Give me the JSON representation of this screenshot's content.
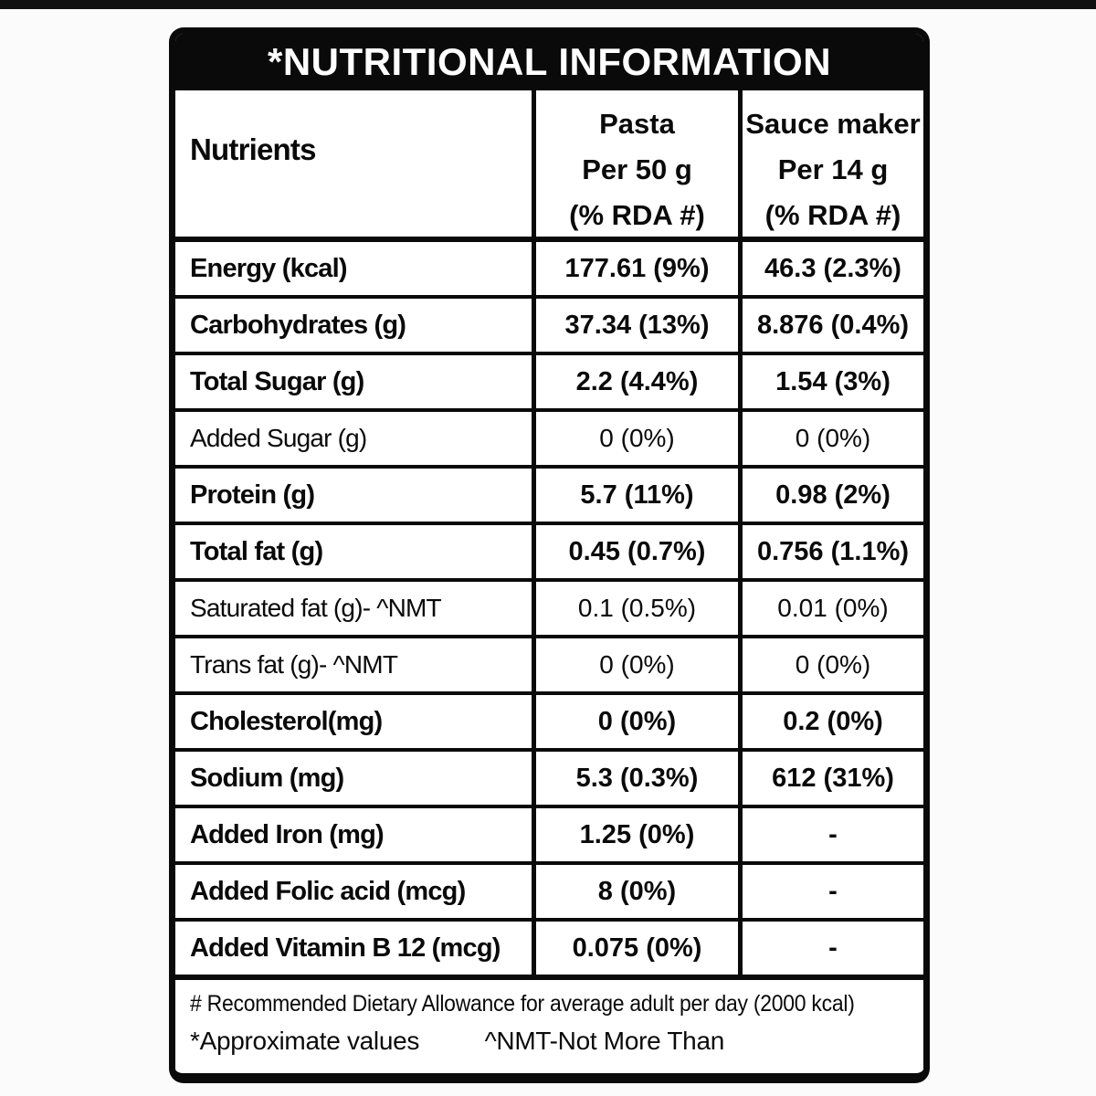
{
  "table": {
    "title": "*NUTRITIONAL INFORMATION",
    "columns": {
      "nutrients": "Nutrients",
      "pasta": [
        "Pasta",
        "Per 50 g",
        "(% RDA #)"
      ],
      "sauce": [
        "Sauce maker",
        "Per 14 g",
        "(% RDA #)"
      ]
    },
    "rows": [
      {
        "nutrient": "Energy (kcal)",
        "pasta": "177.61 (9%)",
        "sauce": "46.3 (2.3%)"
      },
      {
        "nutrient": "Carbohydrates (g)",
        "pasta": "37.34 (13%)",
        "sauce": "8.876 (0.4%)"
      },
      {
        "nutrient": "Total Sugar (g)",
        "pasta": "2.2 (4.4%)",
        "sauce": "1.54 (3%)"
      },
      {
        "nutrient": "Added Sugar (g)",
        "pasta": "0 (0%)",
        "sauce": "0 (0%)"
      },
      {
        "nutrient": "Protein (g)",
        "pasta": "5.7 (11%)",
        "sauce": "0.98 (2%)"
      },
      {
        "nutrient": "Total fat (g)",
        "pasta": "0.45 (0.7%)",
        "sauce": "0.756 (1.1%)"
      },
      {
        "nutrient": "Saturated fat (g)- ^NMT",
        "pasta": "0.1 (0.5%)",
        "sauce": "0.01 (0%)"
      },
      {
        "nutrient": "Trans fat (g)- ^NMT",
        "pasta": "0 (0%)",
        "sauce": "0 (0%)"
      },
      {
        "nutrient": "Cholesterol(mg)",
        "pasta": "0 (0%)",
        "sauce": "0.2 (0%)"
      },
      {
        "nutrient": "Sodium (mg)",
        "pasta": "5.3 (0.3%)",
        "sauce": "612 (31%)"
      },
      {
        "nutrient": "Added Iron (mg)",
        "pasta": "1.25 (0%)",
        "sauce": "-"
      },
      {
        "nutrient": "Added Folic acid (mcg)",
        "pasta": "8 (0%)",
        "sauce": "-"
      },
      {
        "nutrient": "Added Vitamin B 12 (mcg)",
        "pasta": "0.075 (0%)",
        "sauce": "-"
      }
    ],
    "footnotes": {
      "rda": "# Recommended Dietary Allowance for average adult per day (2000 kcal)",
      "approximate": "*Approximate values",
      "nmt": "^NMT-Not More Than"
    },
    "colors": {
      "ink": "#0a0a0a",
      "paper": "#ffffff",
      "title_text": "#ffffff"
    }
  }
}
